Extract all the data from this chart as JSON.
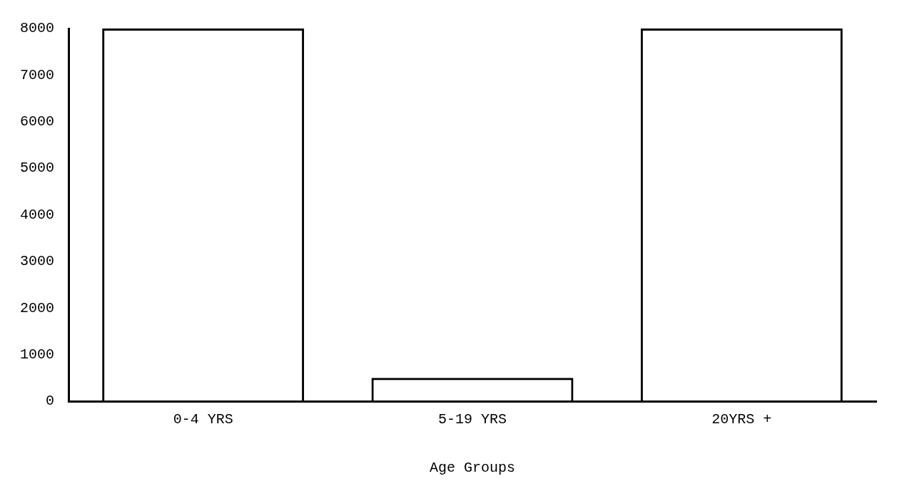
{
  "chart_data": {
    "type": "bar",
    "xlabel": "Age Groups",
    "categories": [
      "0-4 YRS",
      "5-19 YRS",
      "20YRS +"
    ],
    "values": [
      8000,
      500,
      8000
    ],
    "color": "#000000",
    "ylim": [
      0,
      8000
    ],
    "yticks": [
      0,
      1000,
      2000,
      3000,
      4000,
      5000,
      6000,
      7000,
      8000
    ],
    "grid": false,
    "legend": false
  }
}
